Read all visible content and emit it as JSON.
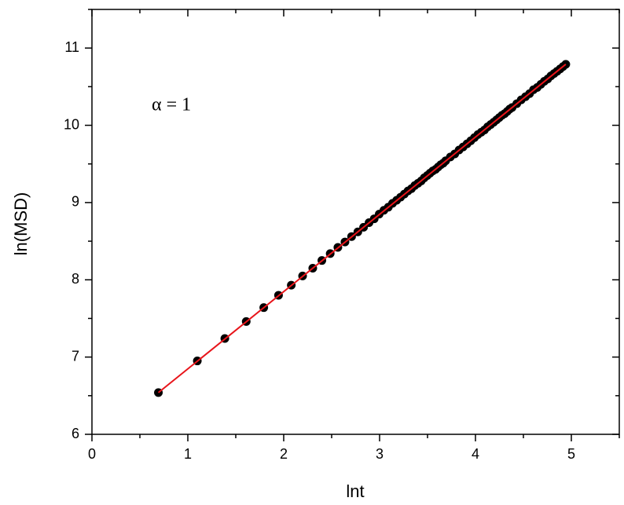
{
  "chart_data": {
    "type": "scatter",
    "xlabel": "lnt",
    "ylabel": "ln(MSD)",
    "annotation": "α = 1",
    "xlim": [
      0,
      5.5
    ],
    "ylim": [
      6,
      11.5
    ],
    "xticks": [
      0,
      1,
      2,
      3,
      4,
      5
    ],
    "yticks": [
      6,
      7,
      8,
      9,
      10,
      11
    ],
    "xminorticks": [
      0.5,
      1.5,
      2.5,
      3.5,
      4.5,
      5.5
    ],
    "yminorticks": [
      6.5,
      7.5,
      8.5,
      9.5,
      10.5,
      11.5
    ],
    "series": [
      {
        "type": "scatter",
        "color": "#000000",
        "x": [
          0.693,
          1.099,
          1.386,
          1.609,
          1.792,
          1.946,
          2.079,
          2.197,
          2.303,
          2.398,
          2.485,
          2.565,
          2.639,
          2.708,
          2.773,
          2.833,
          2.89,
          2.944,
          2.996,
          3.045,
          3.091,
          3.135,
          3.178,
          3.219,
          3.258,
          3.296,
          3.332,
          3.367,
          3.401,
          3.434,
          3.466,
          3.497,
          3.526,
          3.555,
          3.584,
          3.611,
          3.638,
          3.664,
          3.689,
          3.738,
          3.784,
          3.829,
          3.871,
          3.912,
          3.951,
          3.989,
          4.025,
          4.06,
          4.094,
          4.127,
          4.159,
          4.19,
          4.22,
          4.248,
          4.277,
          4.304,
          4.331,
          4.357,
          4.382,
          4.431,
          4.477,
          4.522,
          4.564,
          4.605,
          4.644,
          4.682,
          4.718,
          4.754,
          4.787,
          4.82,
          4.852,
          4.883,
          4.913,
          4.942
        ],
        "values": [
          6.54,
          6.95,
          7.24,
          7.46,
          7.64,
          7.8,
          7.93,
          8.05,
          8.15,
          8.25,
          8.34,
          8.42,
          8.49,
          8.56,
          8.62,
          8.68,
          8.74,
          8.79,
          8.85,
          8.9,
          8.94,
          8.99,
          9.03,
          9.07,
          9.11,
          9.15,
          9.18,
          9.22,
          9.25,
          9.28,
          9.32,
          9.35,
          9.38,
          9.41,
          9.43,
          9.46,
          9.49,
          9.51,
          9.54,
          9.59,
          9.63,
          9.68,
          9.72,
          9.76,
          9.8,
          9.84,
          9.88,
          9.91,
          9.94,
          9.98,
          10.01,
          10.04,
          10.07,
          10.1,
          10.13,
          10.15,
          10.18,
          10.21,
          10.23,
          10.28,
          10.33,
          10.37,
          10.41,
          10.46,
          10.49,
          10.53,
          10.57,
          10.6,
          10.64,
          10.67,
          10.7,
          10.73,
          10.76,
          10.79
        ]
      },
      {
        "type": "line",
        "color": "#e8141a",
        "x": [
          0.693,
          4.942
        ],
        "values": [
          6.54,
          10.79
        ]
      }
    ]
  }
}
